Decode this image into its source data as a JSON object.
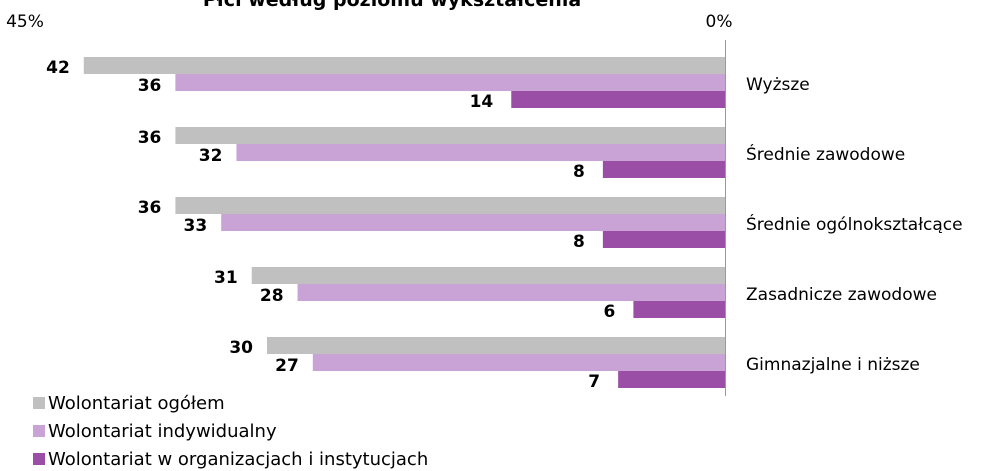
{
  "chart_data": {
    "type": "bar",
    "orientation": "horizontal",
    "title": "Płci według poziomu wykształcenia",
    "xaxis": {
      "ticks": [
        "45%",
        "0%"
      ],
      "range": [
        0,
        45
      ],
      "reversed": true
    },
    "categories": [
      "Wyższe",
      "Średnie zawodowe",
      "Średnie ogólnokształcące",
      "Zasadnicze zawodowe",
      "Gimnazjalne i niższe"
    ],
    "series": [
      {
        "name": "Wolontariat ogółem",
        "values": [
          42,
          36,
          36,
          31,
          30
        ],
        "color": "#c0c0c0"
      },
      {
        "name": "Wolontariat indywidualny",
        "values": [
          36,
          32,
          33,
          28,
          27
        ],
        "color": "#c9a3d6"
      },
      {
        "name": "Wolontariat w organizacjach i instytucjach",
        "values": [
          14,
          8,
          8,
          6,
          7
        ],
        "color": "#9b4ea6"
      }
    ],
    "legend_position": "bottom-left",
    "grid": false
  }
}
